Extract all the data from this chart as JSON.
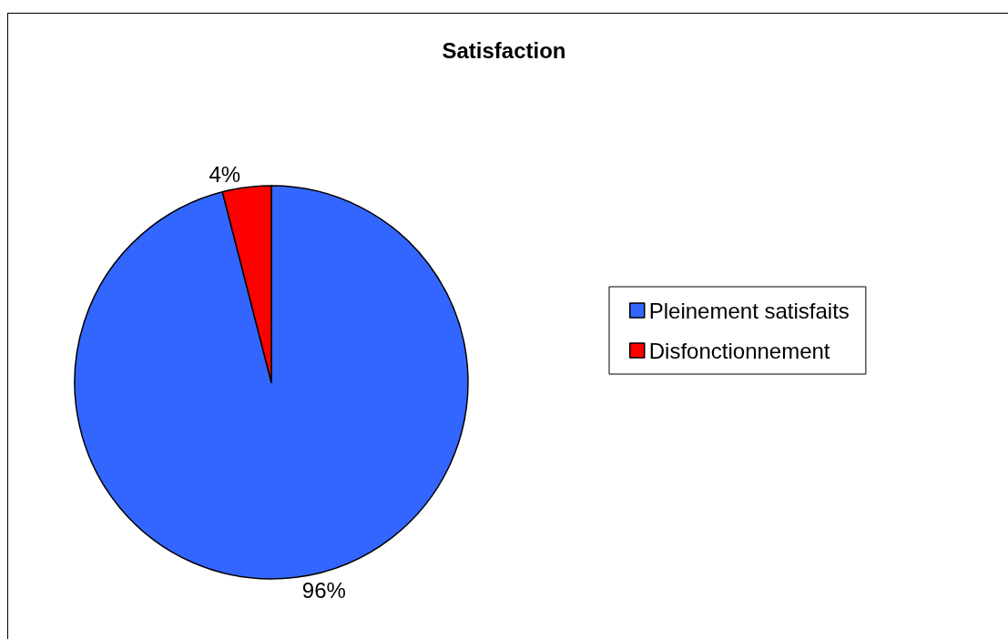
{
  "chart_data": {
    "type": "pie",
    "title": "Satisfaction",
    "categories": [
      "Pleinement satisfaits",
      "Disfonctionnement"
    ],
    "values": [
      96,
      4
    ],
    "colors": [
      "#3366ff",
      "#ff0000"
    ],
    "value_labels": [
      "96%",
      "4%"
    ],
    "legend": "right"
  }
}
